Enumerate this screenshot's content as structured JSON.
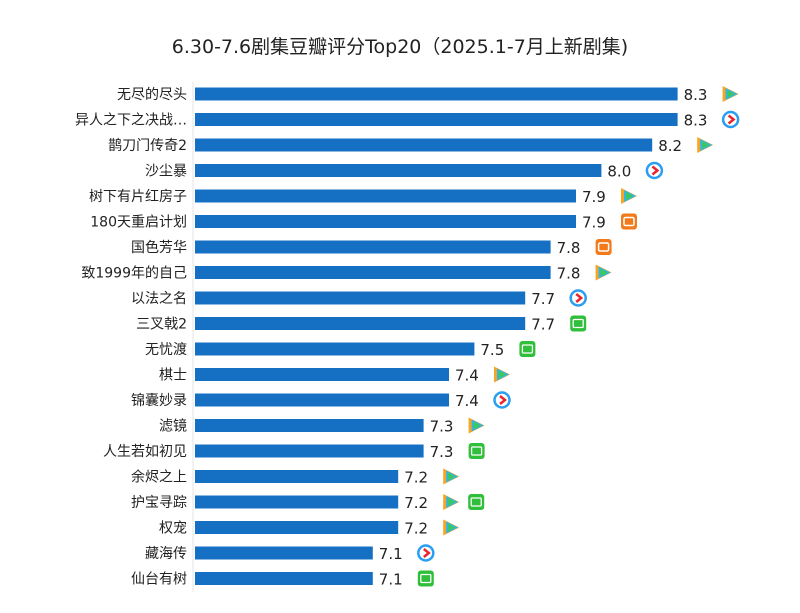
{
  "chart_data": {
    "type": "bar",
    "orientation": "horizontal",
    "title": "6.30-7.6剧集豆瓣评分Top20（2025.1-7月上新剧集)",
    "xlim": [
      6.4,
      8.5
    ],
    "grid": false,
    "bar_color": "#1570c4",
    "categories": [
      "无尽的尽头",
      "异人之下之决战…",
      "鹊刀门传奇2",
      "沙尘暴",
      "树下有片红房子",
      "180天重启计划",
      "国色芳华",
      "致1999年的自己",
      "以法之名",
      "三叉戟2",
      "无忧渡",
      "棋士",
      "锦囊妙录",
      "滤镜",
      "人生若如初见",
      "余烬之上",
      "护宝寻踪",
      "权宠",
      "藏海传",
      "仙台有树"
    ],
    "values": [
      8.3,
      8.3,
      8.2,
      8.0,
      7.9,
      7.9,
      7.8,
      7.8,
      7.7,
      7.7,
      7.5,
      7.4,
      7.4,
      7.3,
      7.3,
      7.2,
      7.2,
      7.2,
      7.1,
      7.1
    ],
    "platforms": [
      [
        "tencent"
      ],
      [
        "youku"
      ],
      [
        "tencent"
      ],
      [
        "youku"
      ],
      [
        "tencent"
      ],
      [
        "mango"
      ],
      [
        "mango"
      ],
      [
        "tencent"
      ],
      [
        "youku"
      ],
      [
        "iqiyi"
      ],
      [
        "iqiyi"
      ],
      [
        "tencent"
      ],
      [
        "youku"
      ],
      [
        "tencent"
      ],
      [
        "iqiyi"
      ],
      [
        "tencent"
      ],
      [
        "tencent",
        "iqiyi"
      ],
      [
        "tencent"
      ],
      [
        "youku"
      ],
      [
        "iqiyi"
      ]
    ]
  }
}
